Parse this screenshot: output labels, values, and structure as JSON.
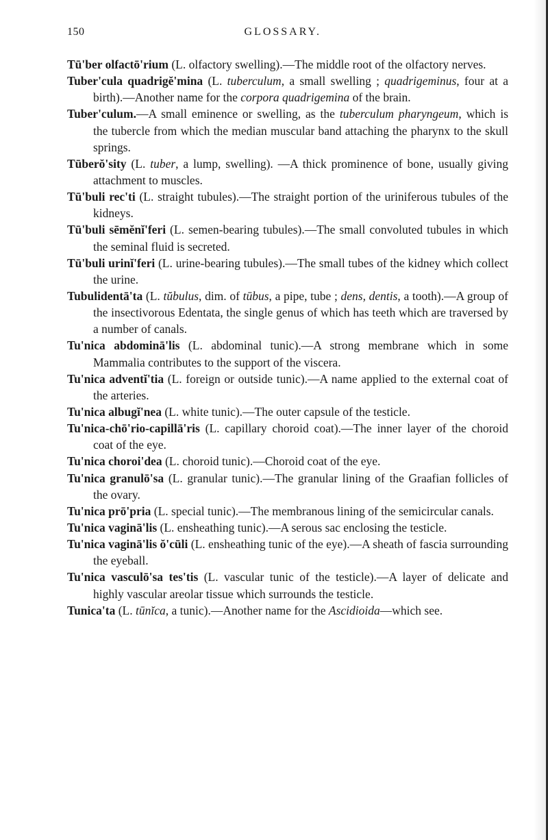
{
  "header": {
    "page_number": "150",
    "title": "GLOSSARY."
  },
  "entries": [
    {
      "term": "Tū'ber olfactō'rium",
      "text": " (L. olfactory swelling).—The middle root of the olfactory nerves."
    },
    {
      "term": "Tuber'cula quadrigĕ'mina",
      "text_before_italic": " (L. ",
      "italic1": "tuberculum",
      "text_mid1": ", a small swelling ; ",
      "italic2": "quadrigeminus",
      "text_mid2": ", four at a birth).—Another name for the ",
      "italic3": "corpora quadrigemina",
      "text_after": " of the brain."
    },
    {
      "term": "Tuber'culum.",
      "text_before_italic": "—A small eminence or swelling, as the ",
      "italic1": "tuberculum pharyngeum",
      "text_after": ", which is the tubercle from which the median muscular band attaching the pharynx to the skull springs."
    },
    {
      "term": "Tūberŏ'sity",
      "text_before_italic": " (L. ",
      "italic1": "tuber",
      "text_after": ", a lump, swelling). —A thick prominence of bone, usually giving attachment to muscles."
    },
    {
      "term": "Tū'buli rec'ti",
      "text": " (L. straight tubules).—The straight portion of the uriniferous tubules of the kidneys."
    },
    {
      "term": "Tū'buli sēmĕnĭ'feri",
      "text": " (L. semen-bearing tubules).—The small convoluted tubules in which the seminal fluid is secreted."
    },
    {
      "term": "Tū'buli urinĭ'feri",
      "text": " (L. urine-bearing tubules).—The small tubes of the kidney which collect the urine."
    },
    {
      "term": "Tubulidentā'ta",
      "text_before_italic": " (L. ",
      "italic1": "tŭbulus",
      "text_mid1": ", dim. of ",
      "italic2": "tūbus",
      "text_mid2": ", a pipe, tube ; ",
      "italic3": "dens, dentis",
      "text_after": ", a tooth).—A group of the insectivorous Edentata, the single genus of which has teeth which are traversed by a number of canals."
    },
    {
      "term": "Tu'nica abdominā'lis",
      "text": " (L. abdominal tunic).—A strong membrane which in some Mammalia contributes to the support of the viscera."
    },
    {
      "term": "Tu'nica adventĭ'tia",
      "text": " (L. foreign or outside tunic).—A name applied to the external coat of the arteries."
    },
    {
      "term": "Tu'nica albugĭ'nea",
      "text": " (L. white tunic).—The outer capsule of the testicle."
    },
    {
      "term": "Tu'nica-chō'rio-capillā'ris",
      "text": " (L. capillary choroid coat).—The inner layer of the choroid coat of the eye."
    },
    {
      "term": "Tu'nica choroi'dea",
      "text": " (L. choroid tunic).—Choroid coat of the eye."
    },
    {
      "term": "Tu'nica granulō'sa",
      "text": " (L. granular tunic).—The granular lining of the Graafian follicles of the ovary."
    },
    {
      "term": "Tu'nica prō'pria",
      "text": " (L. special tunic).—The membranous lining of the semicircular canals."
    },
    {
      "term": "Tu'nica vaginā'lis",
      "text": " (L. ensheathing tunic).—A serous sac enclosing the testicle."
    },
    {
      "term": "Tu'nica vaginā'lis ŏ'cūli",
      "text": " (L. ensheathing tunic of the eye).—A sheath of fascia surrounding the eyeball."
    },
    {
      "term": "Tu'nica vasculō'sa tes'tis",
      "text": " (L. vascular tunic of the testicle).—A layer of delicate and highly vascular areolar tissue which surrounds the testicle."
    },
    {
      "term": "Tunica'ta",
      "text_before_italic": " (L. ",
      "italic1": "tūnĭca",
      "text_mid1": ", a tunic).—Another name for the ",
      "italic2": "Ascidioida",
      "text_after": "—which see."
    }
  ]
}
